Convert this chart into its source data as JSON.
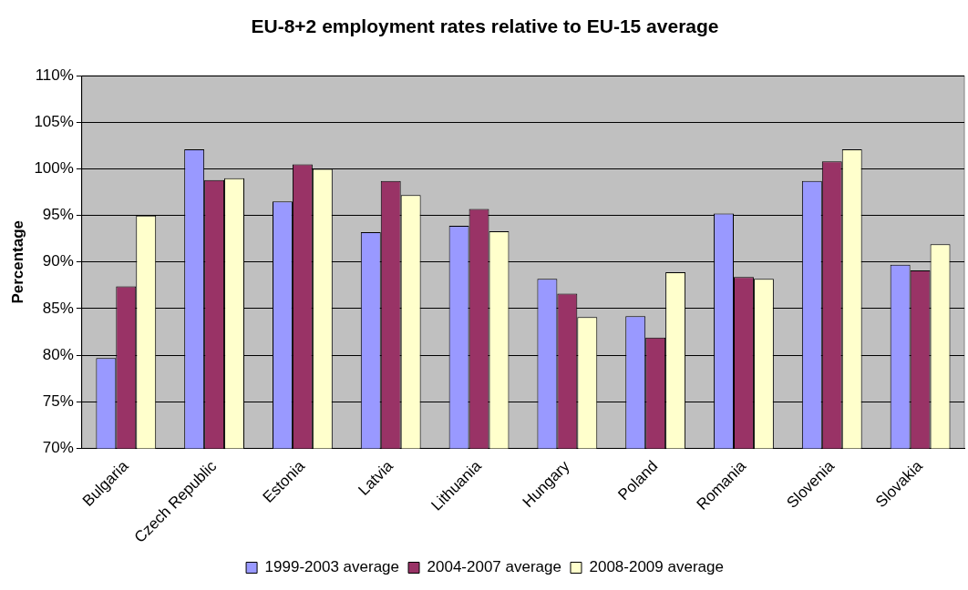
{
  "chart_data": {
    "type": "bar",
    "title": "EU-8+2 employment rates relative to EU-15 average",
    "ylabel": "Percentage",
    "categories": [
      "Bulgaria",
      "Czech Republic",
      "Estonia",
      "Latvia",
      "Lithuania",
      "Hungary",
      "Poland",
      "Romania",
      "Slovenia",
      "Slovakia"
    ],
    "series": [
      {
        "name": "1999-2003 average",
        "color": "#9999ff",
        "values": [
          79.7,
          102.1,
          96.5,
          93.2,
          93.9,
          88.2,
          84.2,
          95.2,
          98.7,
          89.7
        ]
      },
      {
        "name": "2004-2007 average",
        "color": "#993366",
        "values": [
          87.4,
          98.8,
          100.5,
          98.7,
          95.7,
          86.6,
          81.9,
          88.4,
          100.8,
          89.1
        ]
      },
      {
        "name": "2008-2009 average",
        "color": "#ffffcc",
        "values": [
          95.0,
          99.0,
          100.0,
          97.2,
          93.3,
          84.1,
          88.9,
          88.2,
          102.1,
          91.9
        ]
      }
    ],
    "ylim": [
      70,
      110
    ],
    "yticks": [
      {
        "value": 70,
        "label": "70%"
      },
      {
        "value": 75,
        "label": "75%"
      },
      {
        "value": 80,
        "label": "80%"
      },
      {
        "value": 85,
        "label": "85%"
      },
      {
        "value": 90,
        "label": "90%"
      },
      {
        "value": 95,
        "label": "95%"
      },
      {
        "value": 100,
        "label": "100%"
      },
      {
        "value": 105,
        "label": "105%"
      },
      {
        "value": 110,
        "label": "110%"
      }
    ],
    "grid": "y",
    "legend": "bottom"
  }
}
